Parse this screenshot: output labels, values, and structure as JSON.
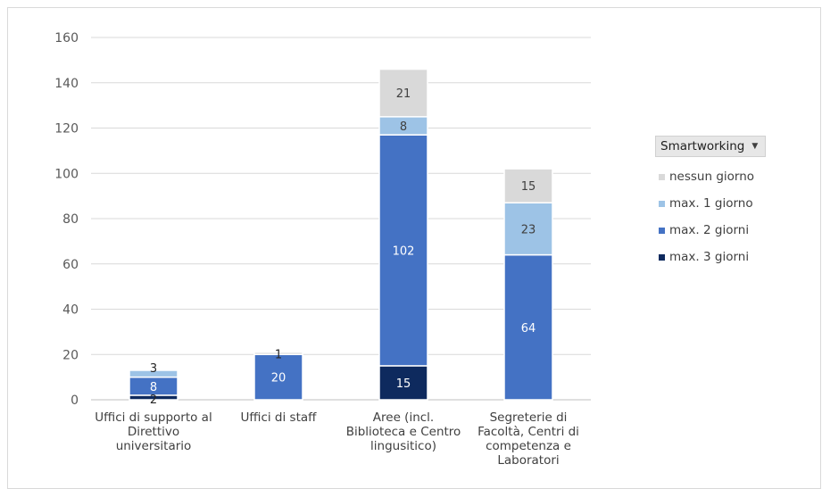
{
  "chart_data": {
    "type": "bar",
    "stacked": true,
    "categories": [
      [
        "Uffici di supporto al",
        "Direttivo",
        "universitario"
      ],
      [
        "Uffici di staff"
      ],
      [
        "Aree (incl.",
        "Biblioteca e Centro",
        "lingusitico)"
      ],
      [
        "Segreterie di",
        "Facoltà, Centri di",
        "competenza e",
        "Laboratori"
      ]
    ],
    "series": [
      {
        "name": "max. 3 giorni",
        "color": "#0e2a5e",
        "label_color": "#ffffff",
        "values": [
          2,
          0,
          15,
          0
        ]
      },
      {
        "name": "max. 2 giorni",
        "color": "#4472c4",
        "label_color": "#ffffff",
        "values": [
          8,
          20,
          102,
          64
        ]
      },
      {
        "name": "max. 1 giorno",
        "color": "#9dc3e6",
        "label_color": "#404040",
        "values": [
          3,
          0,
          8,
          23
        ]
      },
      {
        "name": "nessun giorno",
        "color": "#d9d9d9",
        "label_color": "#404040",
        "values": [
          0,
          1,
          21,
          15
        ]
      }
    ],
    "yticks": [
      0,
      20,
      40,
      60,
      80,
      100,
      120,
      140,
      160
    ],
    "ylim": [
      0,
      160
    ],
    "grid": true,
    "legend_position": "right"
  },
  "legend": {
    "title": "Smartworking",
    "items": [
      {
        "label": "nessun giorno",
        "color": "#d9d9d9"
      },
      {
        "label": "max. 1 giorno",
        "color": "#9dc3e6"
      },
      {
        "label": "max. 2 giorni",
        "color": "#4472c4"
      },
      {
        "label": "max. 3 giorni",
        "color": "#0e2a5e"
      }
    ]
  }
}
